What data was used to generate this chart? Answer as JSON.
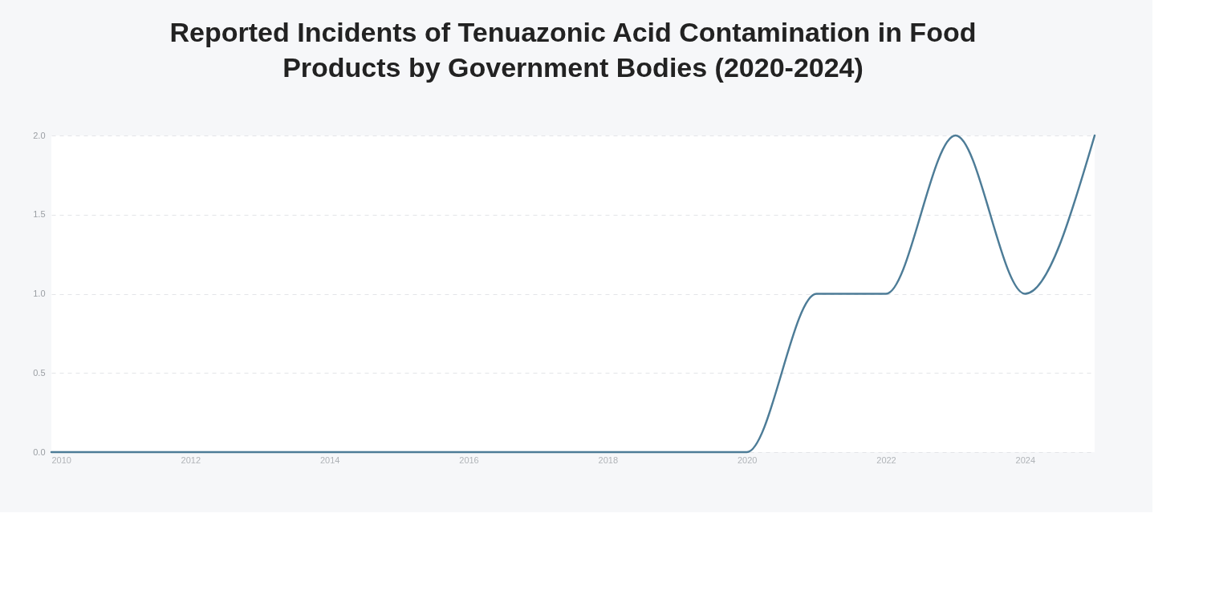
{
  "chart_data": {
    "type": "line",
    "title": "Reported Incidents of Tenuazonic Acid Contamination in Food Products by Government Bodies (2020-2024)",
    "x": [
      2010,
      2011,
      2012,
      2013,
      2014,
      2015,
      2016,
      2017,
      2018,
      2019,
      2020,
      2021,
      2022,
      2023,
      2024,
      2025
    ],
    "series": [
      {
        "color": "#4d7c97",
        "values": [
          0,
          0,
          0,
          0,
          0,
          0,
          0,
          0,
          0,
          0,
          0,
          1,
          1,
          2,
          1,
          2
        ]
      }
    ],
    "xlim": [
      2010,
      2025
    ],
    "xticks": [
      2010,
      2012,
      2014,
      2016,
      2018,
      2020,
      2022,
      2024
    ],
    "ylim": [
      0,
      2
    ],
    "yticks": [
      {
        "value": 0,
        "label": "0.0"
      },
      {
        "value": 0.5,
        "label": "0.5"
      },
      {
        "value": 1,
        "label": "1.0"
      },
      {
        "value": 1.5,
        "label": "1.5"
      },
      {
        "value": 2,
        "label": "2.0"
      }
    ],
    "grid": "y"
  }
}
